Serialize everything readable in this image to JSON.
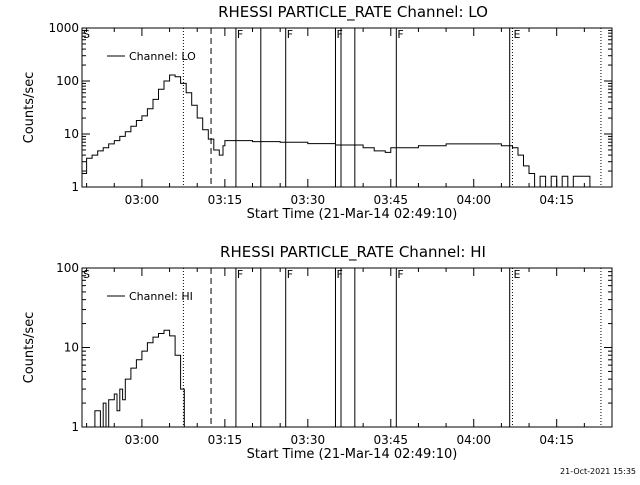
{
  "footer": {
    "timestamp": "21-Oct-2021 15:35"
  },
  "chart_data": [
    {
      "type": "line",
      "title": "RHESSI PARTICLE_RATE Channel: LO",
      "xlabel": "Start Time (21-Mar-14 02:49:10)",
      "ylabel": "Counts/sec",
      "yscale": "log",
      "xlim": [
        "02:49:10",
        "04:25:00"
      ],
      "ylim": [
        1,
        1000
      ],
      "x_ticks": [
        "03:00",
        "03:15",
        "03:30",
        "03:45",
        "04:00",
        "04:15"
      ],
      "y_ticks": [
        "1",
        "10",
        "100",
        "1000"
      ],
      "legend": {
        "placement": "top-left",
        "entries": [
          "Channel: LO"
        ]
      },
      "series": [
        {
          "name": "Channel: LO",
          "color": "#000000",
          "points": [
            [
              "02:49:10",
              1.8
            ],
            [
              "02:50:00",
              3.5
            ],
            [
              "02:51:00",
              4.0
            ],
            [
              "02:52:00",
              4.8
            ],
            [
              "02:53:00",
              5.5
            ],
            [
              "02:54:00",
              6.5
            ],
            [
              "02:55:00",
              7.5
            ],
            [
              "02:56:00",
              9.0
            ],
            [
              "02:57:00",
              11
            ],
            [
              "02:58:00",
              14
            ],
            [
              "02:59:00",
              18
            ],
            [
              "03:00:00",
              22
            ],
            [
              "03:01:00",
              30
            ],
            [
              "03:02:00",
              45
            ],
            [
              "03:03:00",
              70
            ],
            [
              "03:04:00",
              100
            ],
            [
              "03:05:00",
              130
            ],
            [
              "03:06:00",
              120
            ],
            [
              "03:07:00",
              90
            ],
            [
              "03:08:00",
              60
            ],
            [
              "03:09:00",
              35
            ],
            [
              "03:10:00",
              20
            ],
            [
              "03:11:00",
              12
            ],
            [
              "03:12:00",
              8
            ],
            [
              "03:13:00",
              5
            ],
            [
              "03:14:00",
              4
            ],
            [
              "03:14:40",
              6
            ],
            [
              "03:15:00",
              7.5
            ],
            [
              "03:16:00",
              7.5
            ],
            [
              "03:20:00",
              7.2
            ],
            [
              "03:25:00",
              7.0
            ],
            [
              "03:30:00",
              6.6
            ],
            [
              "03:35:00",
              6.2
            ],
            [
              "03:40:00",
              5.5
            ],
            [
              "03:42:00",
              4.8
            ],
            [
              "03:44:00",
              4.5
            ],
            [
              "03:45:00",
              5.5
            ],
            [
              "03:50:00",
              6.0
            ],
            [
              "03:55:00",
              6.5
            ],
            [
              "04:00:00",
              6.5
            ],
            [
              "04:05:00",
              6.0
            ],
            [
              "04:07:00",
              5.5
            ],
            [
              "04:08:00",
              4.0
            ],
            [
              "04:09:00",
              2.5
            ],
            [
              "04:10:00",
              1.8
            ],
            [
              "04:11:00",
              1.0
            ],
            [
              "04:12:00",
              1.6
            ],
            [
              "04:13:00",
              1.0
            ],
            [
              "04:14:00",
              1.6
            ],
            [
              "04:15:00",
              1.0
            ],
            [
              "04:16:00",
              1.6
            ],
            [
              "04:17:00",
              1.0
            ],
            [
              "04:18:00",
              1.6
            ],
            [
              "04:20:00",
              1.6
            ],
            [
              "04:21:00",
              1.0
            ]
          ]
        }
      ],
      "markers": [
        {
          "label": "S",
          "time": "02:49:10",
          "style": "solid"
        },
        {
          "label": "",
          "time": "03:07:30",
          "style": "dotted"
        },
        {
          "label": "",
          "time": "03:12:30",
          "style": "dashed"
        },
        {
          "label": "F",
          "time": "03:17:00",
          "style": "solid"
        },
        {
          "label": "",
          "time": "03:21:30",
          "style": "solid"
        },
        {
          "label": "F",
          "time": "03:26:00",
          "style": "solid"
        },
        {
          "label": "F",
          "time": "03:35:00",
          "style": "solid"
        },
        {
          "label": "",
          "time": "03:36:00",
          "style": "solid"
        },
        {
          "label": "",
          "time": "03:38:30",
          "style": "solid"
        },
        {
          "label": "F",
          "time": "03:46:00",
          "style": "solid"
        },
        {
          "label": "",
          "time": "04:06:30",
          "style": "solid"
        },
        {
          "label": "E",
          "time": "04:07:00",
          "style": "dotted"
        },
        {
          "label": "",
          "time": "04:23:00",
          "style": "dotted"
        }
      ]
    },
    {
      "type": "line",
      "title": "RHESSI PARTICLE_RATE Channel: HI",
      "xlabel": "Start Time (21-Mar-14 02:49:10)",
      "ylabel": "Counts/sec",
      "yscale": "log",
      "xlim": [
        "02:49:10",
        "04:25:00"
      ],
      "ylim": [
        1,
        100
      ],
      "x_ticks": [
        "03:00",
        "03:15",
        "03:30",
        "03:45",
        "04:00",
        "04:15"
      ],
      "y_ticks": [
        "1",
        "10",
        "100"
      ],
      "legend": {
        "placement": "top-left",
        "entries": [
          "Channel: HI"
        ]
      },
      "series": [
        {
          "name": "Channel: HI",
          "color": "#000000",
          "points": [
            [
              "02:51:00",
              1.0
            ],
            [
              "02:51:30",
              1.6
            ],
            [
              "02:52:30",
              1.0
            ],
            [
              "02:53:00",
              2.0
            ],
            [
              "02:53:30",
              1.0
            ],
            [
              "02:54:00",
              2.2
            ],
            [
              "02:55:00",
              2.6
            ],
            [
              "02:55:30",
              1.6
            ],
            [
              "02:56:00",
              3.0
            ],
            [
              "02:56:30",
              2.2
            ],
            [
              "02:57:00",
              4.0
            ],
            [
              "02:58:00",
              5.5
            ],
            [
              "02:59:00",
              7.0
            ],
            [
              "03:00:00",
              9.0
            ],
            [
              "03:01:00",
              11.5
            ],
            [
              "03:02:00",
              13.5
            ],
            [
              "03:03:00",
              15.0
            ],
            [
              "03:04:00",
              16.5
            ],
            [
              "03:05:00",
              14.0
            ],
            [
              "03:06:00",
              8.0
            ],
            [
              "03:07:00",
              3.0
            ],
            [
              "03:07:40",
              1.0
            ]
          ]
        }
      ],
      "markers": [
        {
          "label": "S",
          "time": "02:49:10",
          "style": "solid"
        },
        {
          "label": "",
          "time": "03:07:30",
          "style": "dotted"
        },
        {
          "label": "",
          "time": "03:12:30",
          "style": "dashed"
        },
        {
          "label": "F",
          "time": "03:17:00",
          "style": "solid"
        },
        {
          "label": "",
          "time": "03:21:30",
          "style": "solid"
        },
        {
          "label": "F",
          "time": "03:26:00",
          "style": "solid"
        },
        {
          "label": "F",
          "time": "03:35:00",
          "style": "solid"
        },
        {
          "label": "",
          "time": "03:36:00",
          "style": "solid"
        },
        {
          "label": "",
          "time": "03:38:30",
          "style": "solid"
        },
        {
          "label": "F",
          "time": "03:46:00",
          "style": "solid"
        },
        {
          "label": "",
          "time": "04:06:30",
          "style": "solid"
        },
        {
          "label": "E",
          "time": "04:07:00",
          "style": "dotted"
        },
        {
          "label": "",
          "time": "04:23:00",
          "style": "dotted"
        }
      ]
    }
  ]
}
